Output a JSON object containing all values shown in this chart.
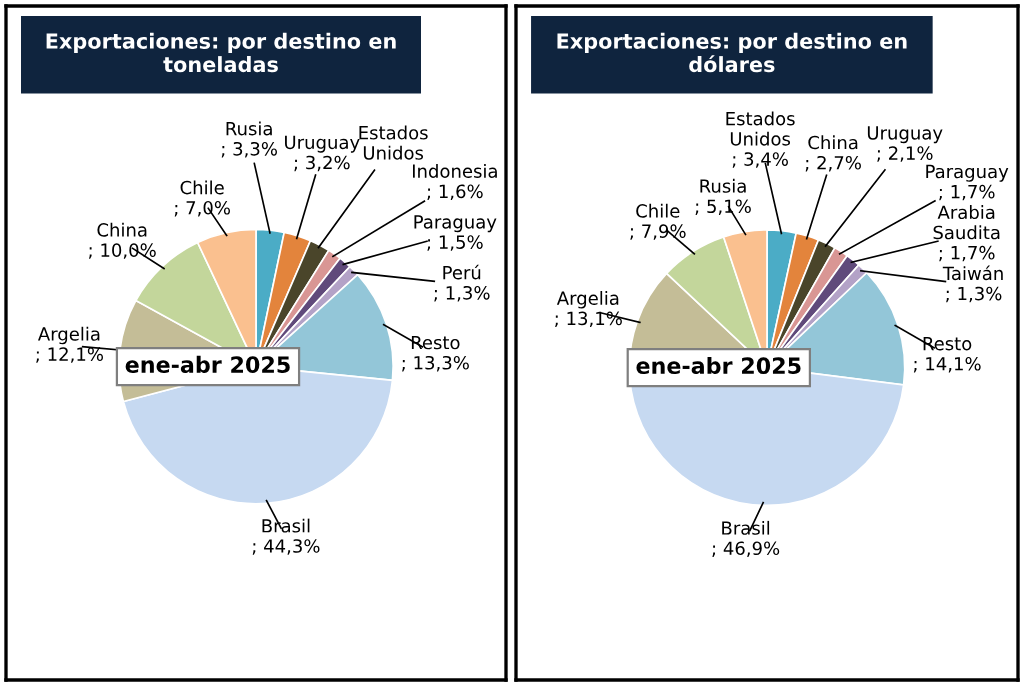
{
  "chart_data": [
    {
      "type": "pie",
      "title": "Exportaciones: por destino en\ntoneladas",
      "categories": [
        "Rusia",
        "Uruguay",
        "Estados Unidos",
        "Indonesia",
        "Paraguay",
        "Perú",
        "Resto",
        "Brasil",
        "Argelia",
        "China",
        "Chile"
      ],
      "values": [
        3.3,
        3.2,
        2.4,
        1.6,
        1.5,
        1.3,
        13.3,
        44.3,
        12.1,
        10.0,
        7.0
      ],
      "value_labels": [
        "; 3,3%",
        "; 3,2%",
        null,
        "; 1,6%",
        "; 1,5%",
        "; 1,3%",
        "; 13,3%",
        "; 44,3%",
        "; 12,1%",
        "; 10,0%",
        "; 7,0%"
      ],
      "colors": [
        "#4bacc6",
        "#e3843c",
        "#4a452a",
        "#d99694",
        "#604a7b",
        "#b3a2c7",
        "#93c6d8",
        "#c6d9f1",
        "#c4bd97",
        "#c3d69b",
        "#fac08f"
      ],
      "annotations": [
        "ene-abr 2025"
      ]
    },
    {
      "type": "pie",
      "title": "Exportaciones: por destino en\ndólares",
      "categories": [
        "Estados Unidos",
        "China",
        "Uruguay",
        "Paraguay",
        "Arabia Saudita",
        "Taiwán",
        "Resto",
        "Brasil",
        "Argelia",
        "Chile",
        "Rusia"
      ],
      "values": [
        3.4,
        2.7,
        2.1,
        1.7,
        1.7,
        1.3,
        14.1,
        46.9,
        13.1,
        7.9,
        5.1
      ],
      "value_labels": [
        "; 3,4%",
        "; 2,7%",
        "; 2,1%",
        "; 1,7%",
        "; 1,7%",
        "; 1,3%",
        "; 14,1%",
        "; 46,9%",
        "; 13,1%",
        "; 7,9%",
        "; 5,1%"
      ],
      "colors": [
        "#4bacc6",
        "#e3843c",
        "#4a452a",
        "#d99694",
        "#604a7b",
        "#b3a2c7",
        "#93c6d8",
        "#c6d9f1",
        "#c4bd97",
        "#c3d69b",
        "#fac08f"
      ],
      "annotations": [
        "ene-abr 2025"
      ]
    }
  ]
}
